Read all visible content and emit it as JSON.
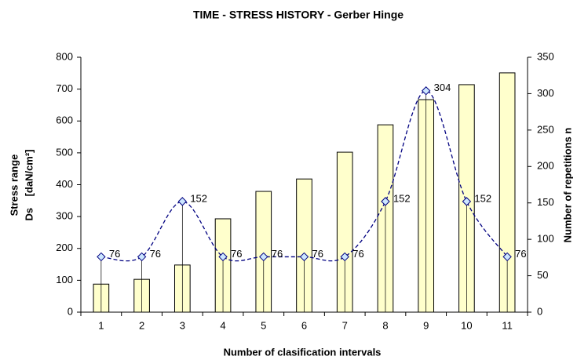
{
  "chart_data": {
    "type": "bar",
    "title": "TIME - STRESS HISTORY - Gerber Hinge",
    "x_label": "Number of clasification intervals",
    "y_label": [
      "Stress range",
      "Ds    [daN/cm²]"
    ],
    "y2_label": "Number of repetitions n",
    "categories": [
      "1",
      "2",
      "3",
      "4",
      "5",
      "6",
      "7",
      "8",
      "9",
      "10",
      "11"
    ],
    "series": [
      {
        "type": "bar",
        "color": "#ffffcc",
        "values": [
          88,
          103,
          148,
          293,
          379,
          418,
          502,
          588,
          667,
          714,
          751
        ]
      },
      {
        "type": "line",
        "axis": "y2",
        "color": "#000080",
        "marker_color": "#cce6ff",
        "values": [
          76,
          76,
          152,
          76,
          76,
          76,
          76,
          152,
          304,
          152,
          76
        ]
      }
    ],
    "ylim": [
      0,
      800
    ],
    "yticks": [
      0,
      100,
      200,
      300,
      400,
      500,
      600,
      700,
      800
    ],
    "y2lim": [
      0,
      350
    ],
    "y2ticks": [
      0,
      50,
      100,
      150,
      200,
      250,
      300,
      350
    ]
  }
}
